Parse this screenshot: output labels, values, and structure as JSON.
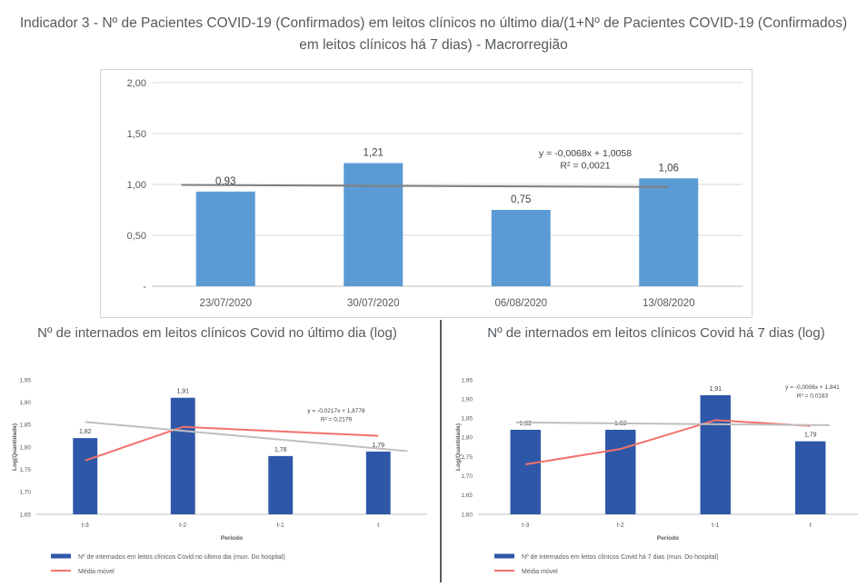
{
  "chart_data": [
    {
      "type": "bar",
      "title": "Indicador 3 - Nº de Pacientes COVID-19 (Confirmados) em leitos clínicos no último dia/(1+Nº de Pacientes COVID-19 (Confirmados) em leitos clínicos há 7 dias) - Macrorregião",
      "categories": [
        "23/07/2020",
        "30/07/2020",
        "06/08/2020",
        "13/08/2020"
      ],
      "values": [
        0.93,
        1.21,
        0.75,
        1.06
      ],
      "data_labels": [
        "0,93",
        "1,21",
        "0,75",
        "1,06"
      ],
      "ylim": [
        0,
        2
      ],
      "yticks": [
        "-",
        "0,50",
        "1,00",
        "1,50",
        "2,00"
      ],
      "trendline": {
        "equation": "y = -0,0068x + 1,0058",
        "r2": "R² = 0,0021",
        "start": 0.995,
        "end": 0.975
      },
      "bar_color": "#5b9bd5",
      "grid": true
    },
    {
      "type": "bar",
      "title": "Nº de internados em leitos clínicos Covid no último dia (log)",
      "categories": [
        "t-3",
        "t-2",
        "t-1",
        "t"
      ],
      "values": [
        1.82,
        1.91,
        1.78,
        1.79
      ],
      "data_labels": [
        "1,82",
        "1,91",
        "1,78",
        "1,79"
      ],
      "ylim": [
        1.65,
        1.95
      ],
      "yticks": [
        "1,65",
        "1,70",
        "1,75",
        "1,80",
        "1,85",
        "1,90",
        "1,95"
      ],
      "xlabel": "Período",
      "ylabel": "Log(Quantidade)",
      "trendline": {
        "equation": "y = -0,0217x + 1,8778",
        "r2": "R² = 0,2179",
        "start": 1.856,
        "end": 1.791
      },
      "moving_average": [
        1.77,
        1.845,
        1.835,
        1.825
      ],
      "legend": [
        "Nº de internados em leitos clínicos Covid no último dia (mun. Do hospital)",
        "Média móvel"
      ],
      "bar_color": "#2e57a8",
      "line_color": "#f4716b"
    },
    {
      "type": "bar",
      "title": "Nº de internados em leitos clínicos Covid há 7 dias (log)",
      "categories": [
        "t-3",
        "t-2",
        "t-1",
        "t"
      ],
      "values": [
        1.82,
        1.82,
        1.91,
        1.79
      ],
      "data_labels": [
        "1,82",
        "1,82",
        "1,91",
        "1,79"
      ],
      "ylim": [
        1.6,
        1.95
      ],
      "yticks": [
        "1,60",
        "1,65",
        "1,70",
        "1,75",
        "1,80",
        "1,85",
        "1,90",
        "1,95"
      ],
      "xlabel": "Período",
      "ylabel": "Log(Quantidade)",
      "trendline": {
        "equation": "y = -0,0006x + 1,841",
        "r2": "R² = 0,0183",
        "start": 1.839,
        "end": 1.832
      },
      "moving_average": [
        1.73,
        1.77,
        1.845,
        1.83
      ],
      "legend": [
        "Nº de internados em leitos clínicos Covid há 7 dias (mun. Do hospital)",
        "Média móvel"
      ],
      "bar_color": "#2e57a8",
      "line_color": "#f4716b"
    }
  ]
}
